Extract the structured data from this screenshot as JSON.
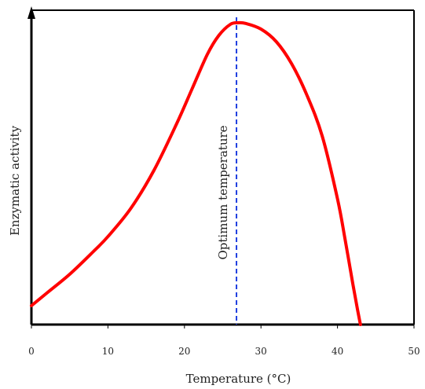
{
  "chart_data": {
    "type": "line",
    "xlabel": "Temperature (°C)",
    "ylabel": "Enzymatic activity",
    "xlim": [
      0,
      50
    ],
    "ylim": [
      0,
      1
    ],
    "x_ticks": [
      "0",
      "10",
      "20",
      "30",
      "40",
      "50"
    ],
    "y_ticks": [],
    "grid": false,
    "series": [
      {
        "color": "#ff0000",
        "x": [
          0,
          2,
          5,
          8,
          10,
          13,
          16,
          19,
          21,
          23,
          24.5,
          26,
          27,
          28,
          30,
          32,
          34,
          36,
          38,
          40,
          41,
          42,
          42.6,
          43
        ],
        "y": [
          0.06,
          0.1,
          0.16,
          0.23,
          0.28,
          0.37,
          0.49,
          0.64,
          0.75,
          0.86,
          0.92,
          0.955,
          0.96,
          0.958,
          0.94,
          0.9,
          0.83,
          0.73,
          0.6,
          0.4,
          0.27,
          0.13,
          0.05,
          0
        ]
      }
    ],
    "annotations": [
      {
        "type": "vline",
        "x": 26.8,
        "color": "#1f3fe0",
        "style": "dashed",
        "label": "Optimum temperature"
      }
    ]
  }
}
